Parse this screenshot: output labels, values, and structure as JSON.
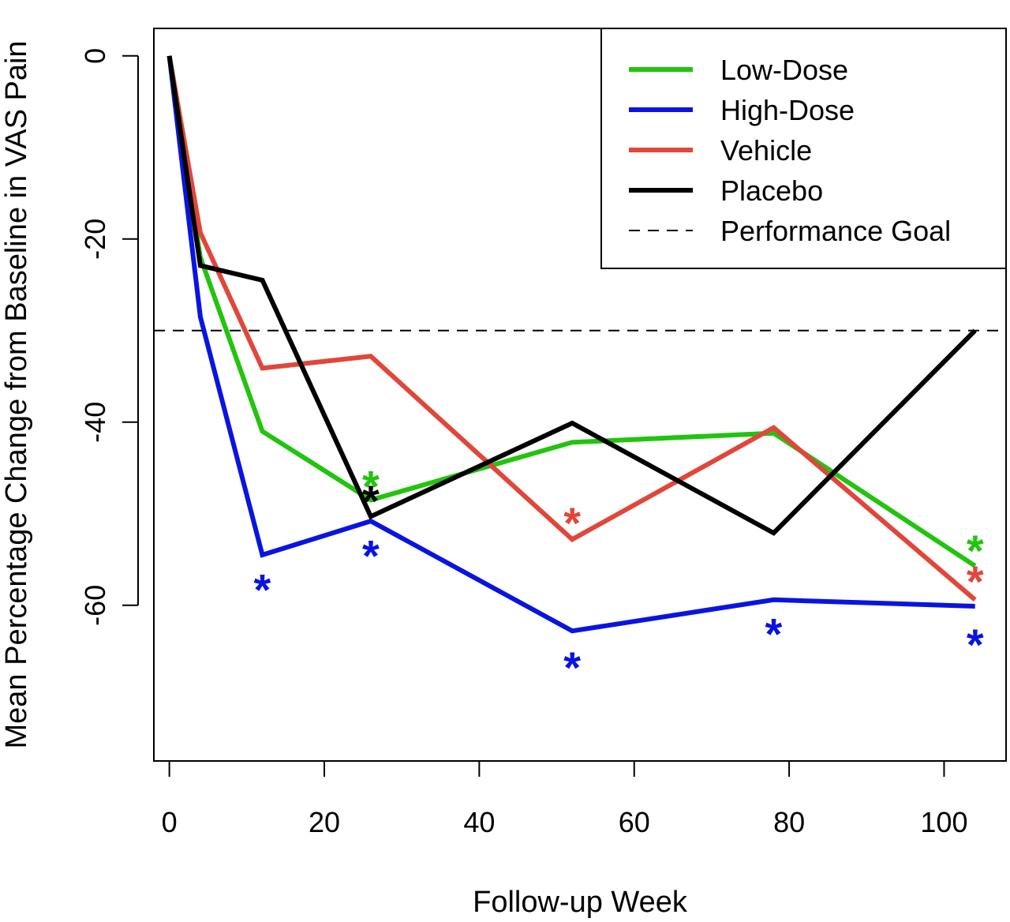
{
  "chart_data": {
    "type": "line",
    "title": "",
    "xlabel": "Follow-up Week",
    "ylabel": "Mean Percentage Change from Baseline in VAS Pain",
    "xlim": [
      -2,
      108
    ],
    "ylim": [
      -77,
      3
    ],
    "x_ticks": [
      0,
      20,
      40,
      60,
      80,
      100
    ],
    "x_tick_labels": [
      "0",
      "20",
      "40",
      "60",
      "80",
      "100"
    ],
    "y_ticks": [
      0,
      -20,
      -40,
      -60
    ],
    "y_tick_labels": [
      "0",
      "-20",
      "-40",
      "-60"
    ],
    "grid": false,
    "legend_position": "top-right",
    "x": [
      0,
      4,
      12,
      26,
      52,
      78,
      104
    ],
    "series": [
      {
        "name": "Low-Dose",
        "color": "#22c40e",
        "style": "solid",
        "values": [
          0,
          -22,
          -41,
          -48.5,
          -42.2,
          -41.2,
          -55.7
        ]
      },
      {
        "name": "High-Dose",
        "color": "#0a14e0",
        "style": "solid",
        "values": [
          0,
          -28.5,
          -54.5,
          -50.8,
          -62.8,
          -59.4,
          -60.1
        ]
      },
      {
        "name": "Vehicle",
        "color": "#e0473a",
        "style": "solid",
        "values": [
          0,
          -19.3,
          -34.1,
          -32.8,
          -52.8,
          -40.6,
          -59.4
        ]
      },
      {
        "name": "Placebo",
        "color": "#000000",
        "style": "solid",
        "values": [
          0,
          -22.9,
          -24.5,
          -50.3,
          -40.1,
          -52.1,
          -30
        ]
      },
      {
        "name": "Performance Goal",
        "color": "#000000",
        "style": "dashed",
        "values": [
          -30,
          -30,
          -30,
          -30,
          -30,
          -30,
          -30
        ]
      }
    ],
    "annotations": [
      {
        "text": "*",
        "x": 12,
        "y": -57.4,
        "color": "#0a14e0"
      },
      {
        "text": "*",
        "x": 26,
        "y": -46.1,
        "color": "#22c40e"
      },
      {
        "text": "*",
        "x": 26,
        "y": -47.7,
        "color": "#000000"
      },
      {
        "text": "*",
        "x": 26,
        "y": -53.7,
        "color": "#0a14e0"
      },
      {
        "text": "*",
        "x": 52,
        "y": -50.1,
        "color": "#e0473a"
      },
      {
        "text": "*",
        "x": 52,
        "y": -65.9,
        "color": "#0a14e0"
      },
      {
        "text": "*",
        "x": 78,
        "y": -62.2,
        "color": "#0a14e0"
      },
      {
        "text": "*",
        "x": 104,
        "y": -53.1,
        "color": "#22c40e"
      },
      {
        "text": "*",
        "x": 104,
        "y": -56.5,
        "color": "#e0473a"
      },
      {
        "text": "*",
        "x": 104,
        "y": -63.4,
        "color": "#0a14e0"
      }
    ]
  }
}
